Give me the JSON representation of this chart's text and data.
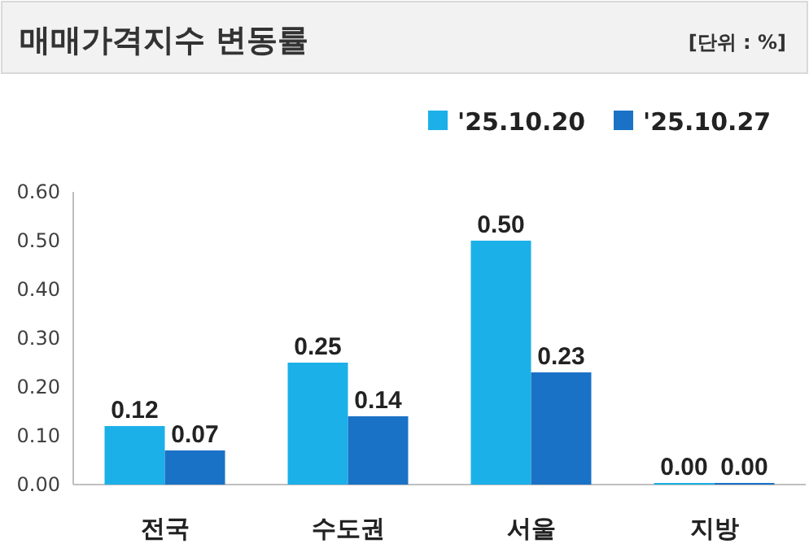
{
  "chart_data": {
    "type": "bar",
    "title": "매매가격지수 변동률",
    "annotations": [
      "[단위 : %]"
    ],
    "categories": [
      "전국",
      "수도권",
      "서울",
      "지방"
    ],
    "series": [
      {
        "name": "'25.10.20",
        "color": "#1cb0e8",
        "values": [
          0.12,
          0.25,
          0.5,
          0
        ],
        "value_labels": [
          "0.12",
          "0.25",
          "0.50",
          "0.00"
        ]
      },
      {
        "name": "'25.10.27",
        "color": "#1a72c6",
        "values": [
          0.07,
          0.14,
          0.23,
          0
        ],
        "value_labels": [
          "0.07",
          "0.14",
          "0.23",
          "0.00"
        ]
      }
    ],
    "ylim": [
      0,
      0.6
    ],
    "yticks": [
      {
        "value": 0,
        "label": "0.00"
      },
      {
        "value": 0.1,
        "label": "0.10"
      },
      {
        "value": 0.2,
        "label": "0.20"
      },
      {
        "value": 0.3,
        "label": "0.30"
      },
      {
        "value": 0.4,
        "label": "0.40"
      },
      {
        "value": 0.5,
        "label": "0.50"
      },
      {
        "value": 0.6,
        "label": "0.60"
      }
    ],
    "legend": "top right"
  }
}
